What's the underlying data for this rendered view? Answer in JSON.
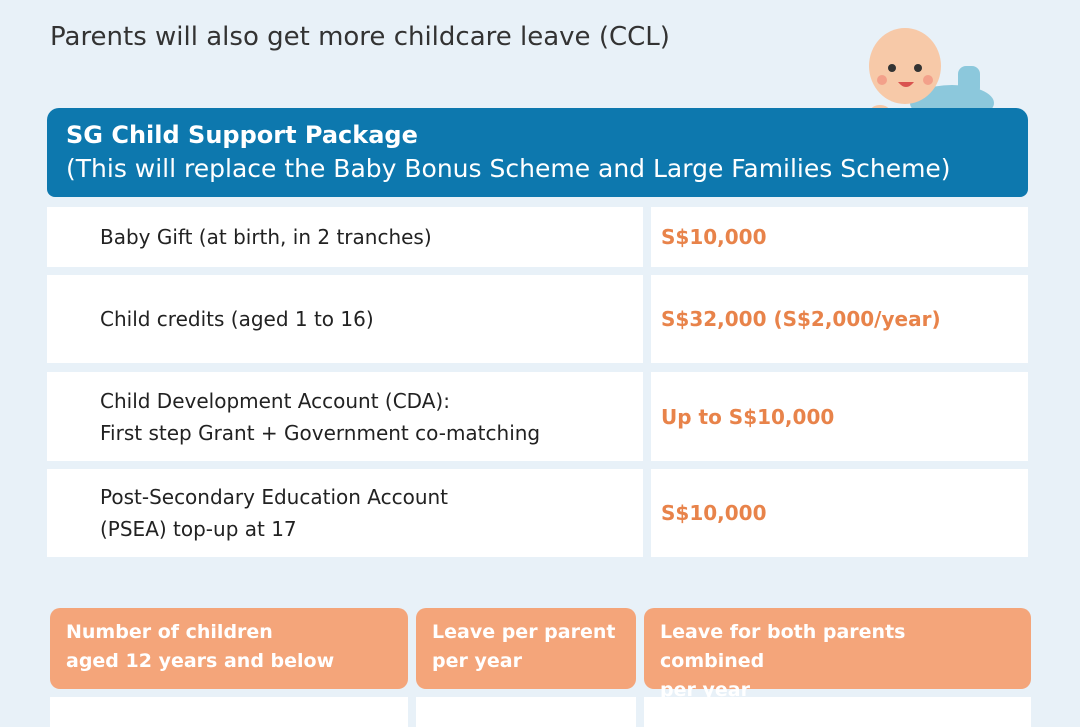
{
  "header": {
    "title": "Parents will also get more childcare leave (CCL)"
  },
  "package": {
    "title": "SG Child Support Package",
    "subtitle": "(This will replace the Baby Bonus Scheme and Large Families Scheme)",
    "rows": [
      {
        "label": [
          "Baby Gift (at birth, in 2 tranches)"
        ],
        "value": "S$10,000"
      },
      {
        "label": [
          "Child credits (aged 1 to 16)"
        ],
        "value": "S$32,000 (S$2,000/year)"
      },
      {
        "label": [
          "Child Development Account (CDA):",
          "First step Grant + Government co-matching"
        ],
        "value": "Up to S$10,000"
      },
      {
        "label": [
          "Post-Secondary Education Account",
          "(PSEA) top-up at 17"
        ],
        "value": "S$10,000"
      }
    ]
  },
  "leave_table": {
    "headers": [
      [
        "Number of children",
        "aged 12 years and below"
      ],
      [
        "Leave per parent",
        "per year"
      ],
      [
        "Leave for both parents combined",
        "per year"
      ]
    ]
  }
}
